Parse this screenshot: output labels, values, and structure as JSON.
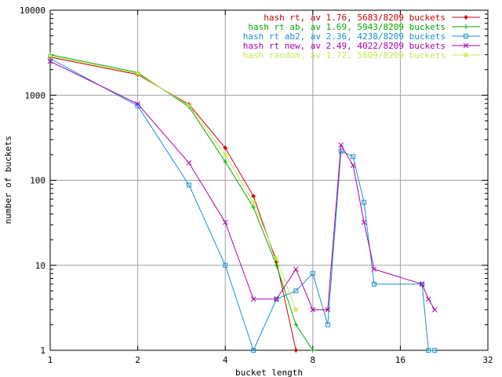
{
  "chart_data": {
    "type": "line",
    "title": "",
    "xlabel": "bucket length",
    "ylabel": "number of buckets",
    "xscale": "log2",
    "yscale": "log10",
    "xlim": [
      1,
      32
    ],
    "ylim": [
      1,
      10000
    ],
    "x_ticks": [
      "1",
      "2",
      "4",
      "8",
      "16",
      "32"
    ],
    "y_ticks": [
      "1",
      "10",
      "100",
      "1000",
      "10000"
    ],
    "grid": true,
    "legend_position": "top-right",
    "series": [
      {
        "name": "hash rt, av 1.76, 5683/8209 buckets",
        "color": "#cc0000",
        "marker": "plus-diamond",
        "x": [
          1,
          2,
          3,
          4,
          5,
          6,
          7
        ],
        "y": [
          2800,
          1750,
          780,
          240,
          65,
          11,
          1
        ]
      },
      {
        "name": "hash rt ab, av 1.69, 5943/8209 buckets",
        "color": "#00aa00",
        "marker": "plus",
        "x": [
          1,
          2,
          3,
          4,
          5,
          6,
          7,
          8
        ],
        "y": [
          3000,
          1850,
          730,
          165,
          48,
          10,
          2,
          1
        ]
      },
      {
        "name": "hash rt ab2, av 2.36, 4238/8209 buckets",
        "color": "#1a8fce",
        "marker": "square",
        "x": [
          1,
          2,
          3,
          4,
          5,
          6,
          7,
          8,
          9,
          10,
          11,
          12,
          13,
          19,
          20,
          21
        ],
        "y": [
          2700,
          750,
          88,
          10,
          1,
          4,
          5,
          8,
          2,
          220,
          190,
          55,
          6,
          6,
          1,
          1
        ]
      },
      {
        "name": "hash rt new, av 2.49, 4022/8209 buckets",
        "color": "#aa00aa",
        "marker": "x",
        "x": [
          1,
          2,
          3,
          4,
          5,
          6,
          7,
          8,
          9,
          10,
          11,
          12,
          13,
          19,
          20,
          21
        ],
        "y": [
          2500,
          790,
          160,
          32,
          4,
          4,
          9,
          3,
          3,
          260,
          150,
          32,
          9,
          6,
          4,
          3
        ]
      },
      {
        "name": "hash random, av 1.72, 5809/8209 buckets",
        "color": "#c8e65a",
        "marker": "star",
        "x": [
          1,
          2,
          3,
          4,
          5,
          6,
          7
        ],
        "y": [
          2900,
          1800,
          760,
          200,
          55,
          12,
          3
        ]
      }
    ]
  }
}
